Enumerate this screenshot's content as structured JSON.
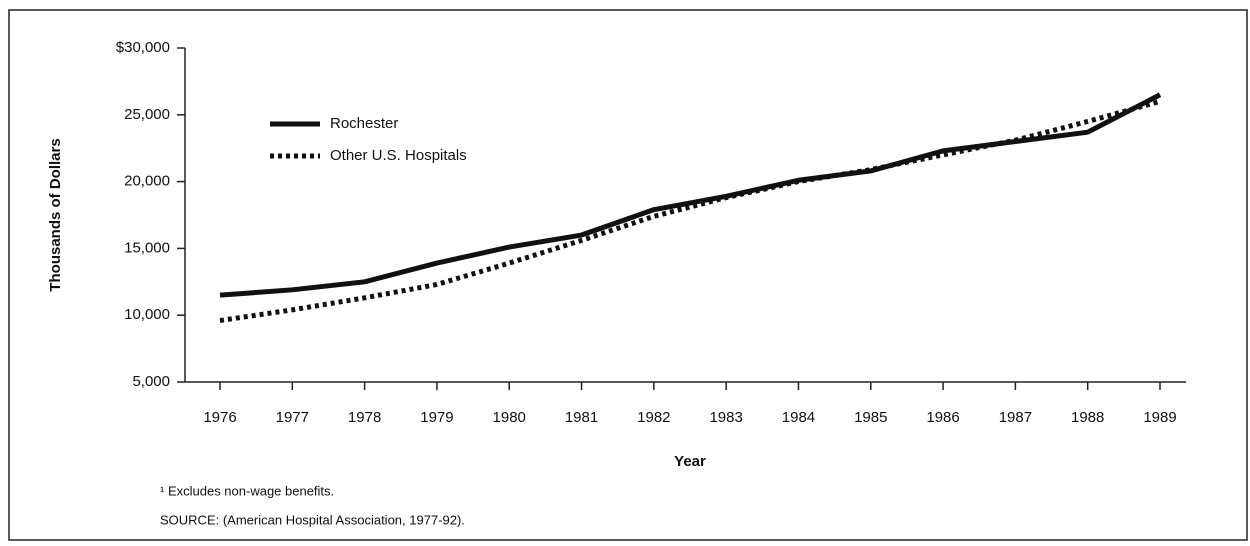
{
  "chart_data": {
    "type": "line",
    "categories": [
      "1976",
      "1977",
      "1978",
      "1979",
      "1980",
      "1981",
      "1982",
      "1983",
      "1984",
      "1985",
      "1986",
      "1987",
      "1988",
      "1989"
    ],
    "series": [
      {
        "name": "Rochester",
        "color": "#111111",
        "style": "solid",
        "values": [
          11500,
          11900,
          12500,
          13900,
          15100,
          16000,
          17900,
          18900,
          20100,
          20800,
          22300,
          23000,
          23700,
          26500
        ]
      },
      {
        "name": "Other U.S. Hospitals",
        "color": "#111111",
        "style": "dotted",
        "values": [
          9600,
          10400,
          11300,
          12300,
          13900,
          15600,
          17400,
          18800,
          20000,
          20900,
          22000,
          23100,
          24500,
          26000
        ]
      }
    ],
    "ylim": [
      5000,
      30000
    ],
    "yticks": [
      {
        "value": 5000,
        "label": "5,000"
      },
      {
        "value": 10000,
        "label": "10,000"
      },
      {
        "value": 15000,
        "label": "15,000"
      },
      {
        "value": 20000,
        "label": "20,000"
      },
      {
        "value": 25000,
        "label": "25,000"
      },
      {
        "value": 30000,
        "label": "$30,000"
      }
    ],
    "xlabel": "Year",
    "ylabel": "Thousands of Dollars",
    "notes": [
      "¹ Excludes non-wage benefits.",
      "SOURCE: (American Hospital Association, 1977-92)."
    ]
  }
}
